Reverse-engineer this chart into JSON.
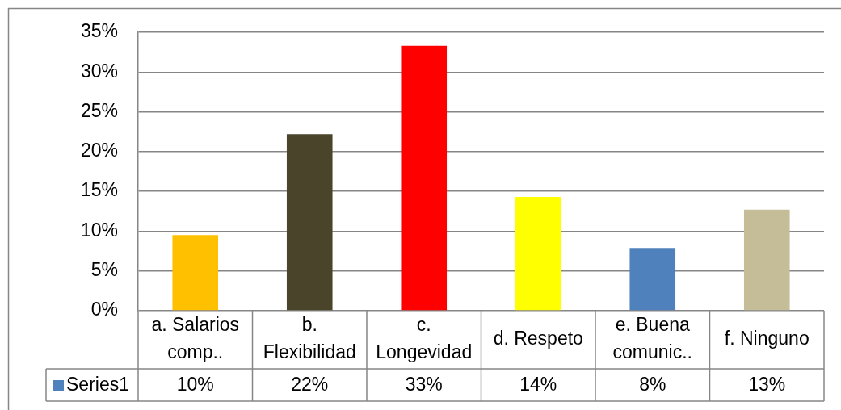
{
  "chart_data": {
    "type": "bar",
    "categories": [
      "a. Salarios comp..",
      "b. Flexibilidad",
      "c. Longevidad",
      "d. Respeto",
      "e. Buena comunic..",
      "f. Ninguno"
    ],
    "series": [
      {
        "name": "Series1",
        "color": "#4f81bd",
        "colors": [
          "#ffc000",
          "#4a452a",
          "#ff0000",
          "#ffff00",
          "#4f81bd",
          "#c4bd97"
        ],
        "values": [
          9.5,
          22.2,
          33.3,
          14.3,
          7.9,
          12.7
        ],
        "value_labels": [
          "10%",
          "22%",
          "33%",
          "14%",
          "8%",
          "13%"
        ]
      }
    ],
    "ylim": [
      0,
      35
    ],
    "yticks": [
      {
        "value": 0,
        "label": "0%"
      },
      {
        "value": 5,
        "label": "5%"
      },
      {
        "value": 10,
        "label": "10%"
      },
      {
        "value": 15,
        "label": "15%"
      },
      {
        "value": 20,
        "label": "20%"
      },
      {
        "value": 25,
        "label": "25%"
      },
      {
        "value": 30,
        "label": "30%"
      },
      {
        "value": 35,
        "label": "35%"
      }
    ],
    "grid": "y",
    "legend": "bottom"
  }
}
